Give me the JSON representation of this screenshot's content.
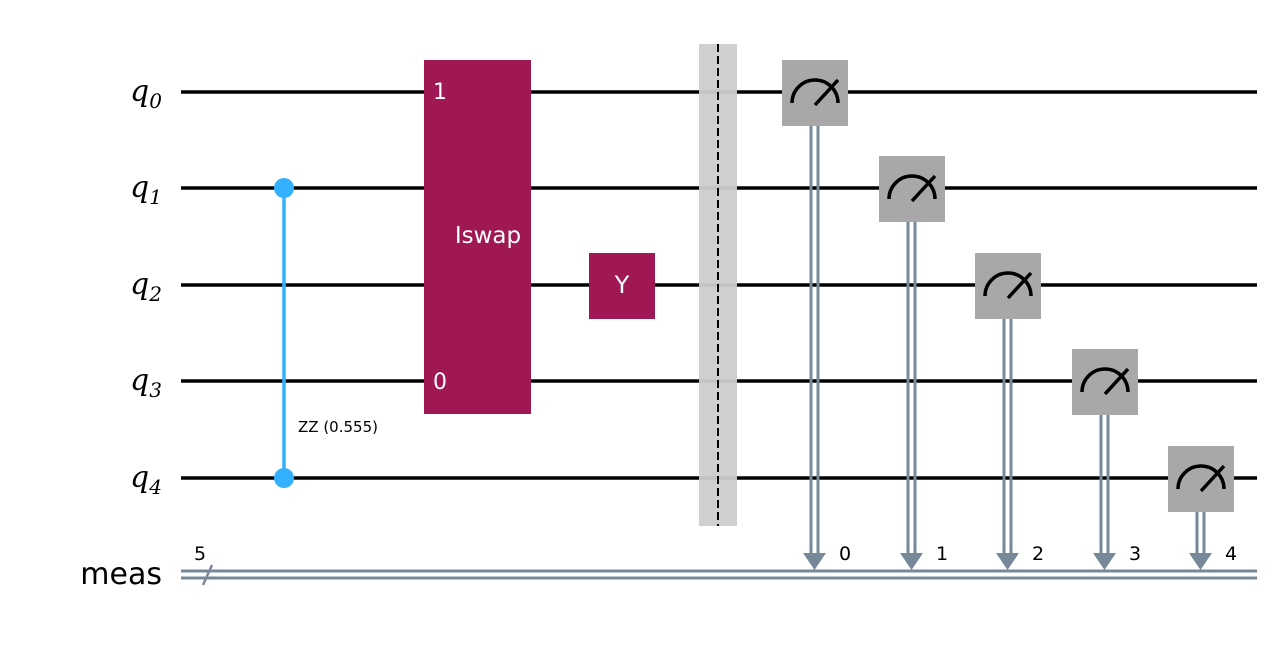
{
  "qubits": [
    {
      "name": "q",
      "index": "0"
    },
    {
      "name": "q",
      "index": "1"
    },
    {
      "name": "q",
      "index": "2"
    },
    {
      "name": "q",
      "index": "3"
    },
    {
      "name": "q",
      "index": "4"
    }
  ],
  "classical": {
    "name": "meas",
    "width": "5"
  },
  "zz_gate": {
    "label": "ZZ (0.555)",
    "qubits": [
      1,
      4
    ],
    "color": "#33b1ff"
  },
  "iswap_gate": {
    "label": "Iswap",
    "top_label": "1",
    "bottom_label": "0",
    "qubits": [
      0,
      3
    ],
    "color": "#9f1853"
  },
  "y_gate": {
    "label": "Y",
    "qubit": 2,
    "color": "#9f1853"
  },
  "barrier": {
    "color": "#cccccc"
  },
  "measurements": [
    {
      "qubit": 0,
      "bit": "0"
    },
    {
      "qubit": 1,
      "bit": "1"
    },
    {
      "qubit": 2,
      "bit": "2"
    },
    {
      "qubit": 3,
      "bit": "3"
    },
    {
      "qubit": 4,
      "bit": "4"
    }
  ],
  "colors": {
    "wire": "#000000",
    "classical_wire": "#778899",
    "measure_box": "#a8a8a8"
  }
}
